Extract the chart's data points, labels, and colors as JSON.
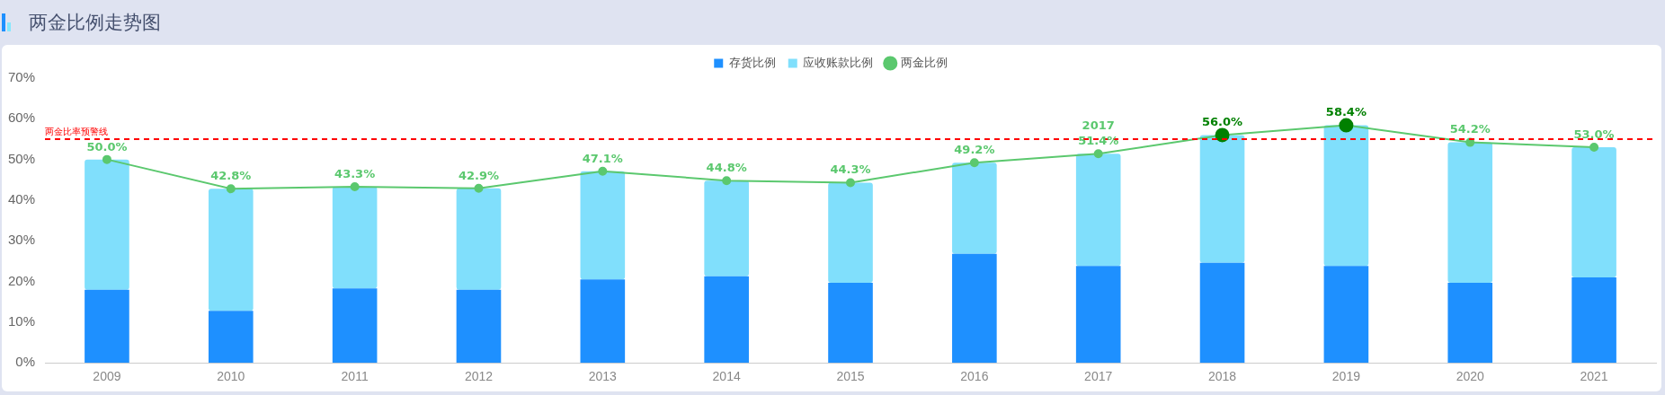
{
  "chart_data": {
    "type": "bar",
    "title": "两金比例走势图",
    "stacked": true,
    "legend": "top",
    "grid": false,
    "categories": [
      "2009",
      "2010",
      "2011",
      "2012",
      "2013",
      "2014",
      "2015",
      "2016",
      "2017",
      "2018",
      "2019",
      "2020",
      "2021"
    ],
    "ylim": [
      0,
      70
    ],
    "yticks": [
      {
        "value": 0,
        "label": "0%"
      },
      {
        "value": 10,
        "label": "10%"
      },
      {
        "value": 20,
        "label": "20%"
      },
      {
        "value": 30,
        "label": "30%"
      },
      {
        "value": 40,
        "label": "40%"
      },
      {
        "value": 50,
        "label": "50%"
      },
      {
        "value": 60,
        "label": "60%"
      },
      {
        "value": 70,
        "label": "70%"
      }
    ],
    "series": [
      {
        "name": "存货比例",
        "color": "#1e90ff",
        "values": [
          18.0,
          12.8,
          18.3,
          18.0,
          20.5,
          21.3,
          19.7,
          26.8,
          23.8,
          24.6,
          23.8,
          19.7,
          21.0
        ]
      },
      {
        "name": "应收账款比例",
        "color": "#80dffc",
        "values": [
          32.0,
          30.0,
          25.0,
          24.9,
          26.6,
          23.5,
          24.6,
          22.4,
          27.6,
          31.4,
          34.6,
          34.5,
          32.0
        ]
      },
      {
        "name": "两金比例",
        "type": "line",
        "color": "#5bc86e",
        "marker": "circle",
        "colors": [
          "#5bc86e",
          "#5bc86e",
          "#5bc86e",
          "#5bc86e",
          "#5bc86e",
          "#5bc86e",
          "#5bc86e",
          "#5bc86e",
          "#5bc86e",
          "#008000",
          "#008000",
          "#5bc86e",
          "#5bc86e"
        ],
        "value_labels": [
          "50.0%",
          "42.8%",
          "43.3%",
          "42.9%",
          "47.1%",
          "44.8%",
          "44.3%",
          "49.2%",
          "51.4%",
          "56.0%",
          "58.4%",
          "54.2%",
          "53.0%"
        ],
        "values": [
          50.0,
          42.8,
          43.3,
          42.9,
          47.1,
          44.8,
          44.3,
          49.2,
          51.4,
          56.0,
          58.4,
          54.2,
          53.0
        ]
      }
    ],
    "ref_lines": [
      {
        "axis": "y",
        "value": 55,
        "label": "两金比率预警线",
        "color": "#ff0000",
        "line_style": "dashed"
      }
    ],
    "annotations": [
      {
        "text": "2017",
        "x": "2017",
        "y": 51.4
      }
    ]
  }
}
